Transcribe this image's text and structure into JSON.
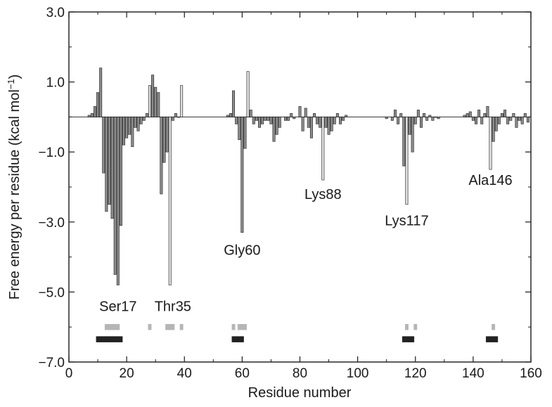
{
  "chart_data": {
    "type": "bar",
    "xlabel": "Residue number",
    "ylabel": "Free energy per residue (kcal mol",
    "ylabel_superscript": "−1",
    "ylabel_close": ")",
    "xlim": [
      0,
      160
    ],
    "ylim": [
      -7.0,
      3.0
    ],
    "xticks": [
      0,
      20,
      40,
      60,
      80,
      100,
      120,
      140,
      160
    ],
    "xtick_labels": [
      "0",
      "20",
      "40",
      "60",
      "80",
      "100",
      "120",
      "140",
      "160"
    ],
    "yticks": [
      3.0,
      1.0,
      -1.0,
      -3.0,
      -5.0,
      -7.0
    ],
    "ytick_labels": [
      "3.0",
      "1.0",
      "−1.0",
      "−3.0",
      "−5.0",
      "−7.0"
    ],
    "grid": false,
    "series": [
      {
        "color": "#8c8c8c",
        "x": [
          7,
          8,
          9,
          10,
          11,
          12,
          13,
          14,
          15,
          16,
          17,
          18,
          19,
          20,
          21,
          22,
          23,
          24,
          25,
          26,
          27,
          29,
          30,
          31,
          32,
          33,
          34,
          36,
          37,
          38,
          55,
          56,
          57,
          58,
          59,
          60,
          61,
          62,
          63,
          64,
          65,
          66,
          67,
          68,
          69,
          70,
          71,
          72,
          73,
          75,
          76,
          77,
          78,
          80,
          81,
          82,
          83,
          84,
          85,
          86,
          87,
          89,
          90,
          91,
          92,
          93,
          94,
          95,
          96,
          110,
          112,
          113,
          114,
          115,
          116,
          118,
          119,
          120,
          121,
          122,
          123,
          124,
          125,
          126,
          127,
          128,
          137,
          138,
          139,
          140,
          141,
          142,
          143,
          144,
          145,
          147,
          148,
          149,
          150,
          151,
          152,
          153,
          154,
          155,
          156,
          157,
          158,
          159
        ],
        "values": [
          0.05,
          0.1,
          0.3,
          0.7,
          1.4,
          -1.6,
          -2.7,
          -2.5,
          -2.9,
          -4.5,
          -4.8,
          -3.1,
          -0.8,
          -0.6,
          -0.5,
          -0.85,
          -0.3,
          -0.4,
          -0.2,
          -0.1,
          0.1,
          1.2,
          0.85,
          0.7,
          -2.2,
          -1.3,
          -1.0,
          -0.1,
          0.1,
          0.0,
          0.05,
          0.1,
          0.75,
          -0.2,
          -0.65,
          -3.3,
          -0.9,
          0.1,
          0.2,
          -0.2,
          -0.1,
          -0.3,
          -0.2,
          -0.1,
          -0.1,
          -0.2,
          -0.7,
          -0.5,
          -0.3,
          -0.1,
          -0.1,
          0.1,
          -0.05,
          0.3,
          -0.4,
          0.25,
          -0.3,
          -0.6,
          0.1,
          -0.2,
          -0.3,
          -0.3,
          -0.5,
          -0.4,
          -0.2,
          0.1,
          -0.2,
          -0.1,
          0.05,
          -0.05,
          -0.1,
          0.2,
          -0.2,
          0.1,
          -1.4,
          -0.5,
          -1.0,
          -0.2,
          0.2,
          -0.3,
          0.1,
          -0.1,
          0.05,
          -0.1,
          0.0,
          -0.05,
          0.05,
          0.1,
          0.15,
          -0.1,
          -0.2,
          0.2,
          -0.2,
          0.1,
          0.3,
          -0.7,
          -0.4,
          -0.2,
          0.1,
          0.2,
          -0.2,
          -0.1,
          0.1,
          -0.3,
          -0.1,
          -0.2,
          0.1,
          -0.15
        ]
      },
      {
        "color": "#dedede",
        "x": [
          28,
          35,
          39,
          62,
          88,
          117,
          146
        ],
        "values": [
          0.9,
          -4.8,
          0.9,
          1.3,
          -1.8,
          -2.5,
          -1.5
        ]
      }
    ],
    "annotations": [
      {
        "text": "Ser17",
        "x": 17,
        "y": -5.4
      },
      {
        "text": "Thr35",
        "x": 36,
        "y": -5.4
      },
      {
        "text": "Gly60",
        "x": 60,
        "y": -3.8
      },
      {
        "text": "Lys88",
        "x": 88,
        "y": -2.2
      },
      {
        "text": "Lys117",
        "x": 117,
        "y": -2.95
      },
      {
        "text": "Ala146",
        "x": 146,
        "y": -1.8
      }
    ],
    "marker_rows": [
      {
        "y": -6.0,
        "color": "#b5b5b5",
        "x": [
          13,
          14,
          15,
          16,
          17,
          28,
          34,
          35,
          36,
          39,
          57,
          59,
          60,
          61,
          117,
          120,
          147
        ]
      },
      {
        "y": -6.35,
        "color": "#222222",
        "x": [
          10,
          11,
          12,
          13,
          14,
          15,
          16,
          17,
          18,
          57,
          58,
          59,
          60,
          116,
          117,
          118,
          119,
          145,
          146,
          147,
          148
        ]
      }
    ]
  }
}
